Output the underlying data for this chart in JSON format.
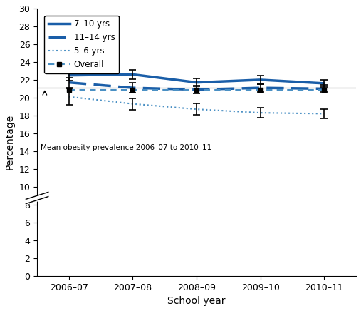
{
  "x_labels": [
    "2006–07",
    "2007–08",
    "2008–09",
    "2009–10",
    "2010–11"
  ],
  "x_values": [
    0,
    1,
    2,
    3,
    4
  ],
  "line_7_10": [
    22.5,
    22.6,
    21.7,
    22.0,
    21.6
  ],
  "line_7_10_err": [
    0.55,
    0.55,
    0.45,
    0.45,
    0.4
  ],
  "line_11_14": [
    21.7,
    21.1,
    20.9,
    21.1,
    21.0
  ],
  "line_11_14_err": [
    0.55,
    0.55,
    0.45,
    0.45,
    0.4
  ],
  "line_5_6": [
    20.1,
    19.3,
    18.7,
    18.3,
    18.2
  ],
  "line_5_6_err": [
    0.9,
    0.65,
    0.65,
    0.55,
    0.5
  ],
  "line_overall": [
    20.85,
    20.85,
    20.85,
    20.85,
    20.85
  ],
  "mean_line_y": 21.1,
  "color_dark_blue": "#1a5ea8",
  "color_light_blue": "#4a90c4",
  "ylabel": "Percentage",
  "xlabel": "School year",
  "ylim_min": 0,
  "ylim_max": 30,
  "annotation_text": "Mean obesity prevalence 2006–07 to 2010–11",
  "dagger_text": "†",
  "legend_labels": [
    "7–10 yrs",
    "11–14 yrs",
    "5–6 yrs",
    "Overall"
  ]
}
